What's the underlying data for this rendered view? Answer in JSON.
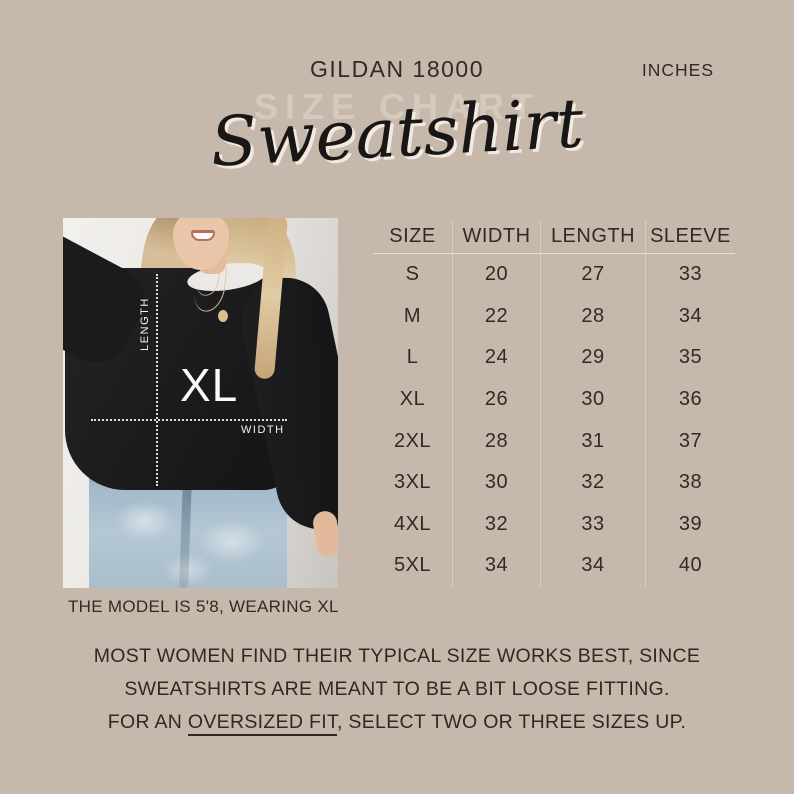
{
  "colors": {
    "background": "#c6b9ac",
    "text": "#2f2b27",
    "watermark": "#d9cfc2",
    "sweatshirt_black": "#1c1c1e",
    "jeans_blue": "#a9bdcb",
    "photo_annotation_white": "#fafafa"
  },
  "header": {
    "brand": "GILDAN 18000",
    "units": "INCHES"
  },
  "title": {
    "watermark": "SIZE CHART",
    "script": "Sweatshirt"
  },
  "photo": {
    "size_label": "XL",
    "length_label": "LENGTH",
    "width_label": "WIDTH",
    "caption": "THE MODEL IS 5'8, WEARING XL"
  },
  "table": {
    "headers": [
      "SIZE",
      "WIDTH",
      "LENGTH",
      "SLEEVE"
    ],
    "rows": [
      [
        "S",
        "20",
        "27",
        "33"
      ],
      [
        "M",
        "22",
        "28",
        "34"
      ],
      [
        "L",
        "24",
        "29",
        "35"
      ],
      [
        "XL",
        "26",
        "30",
        "36"
      ],
      [
        "2XL",
        "28",
        "31",
        "37"
      ],
      [
        "3XL",
        "30",
        "32",
        "38"
      ],
      [
        "4XL",
        "32",
        "33",
        "39"
      ],
      [
        "5XL",
        "34",
        "34",
        "40"
      ]
    ]
  },
  "note": {
    "line1": "MOST WOMEN FIND THEIR TYPICAL SIZE WORKS BEST, SINCE",
    "line2": "SWEATSHIRTS ARE MEANT TO BE A BIT LOOSE FITTING.",
    "line3_prefix": "FOR AN ",
    "line3_underlined": "OVERSIZED FIT",
    "line3_suffix": ", SELECT TWO OR THREE SIZES UP."
  }
}
